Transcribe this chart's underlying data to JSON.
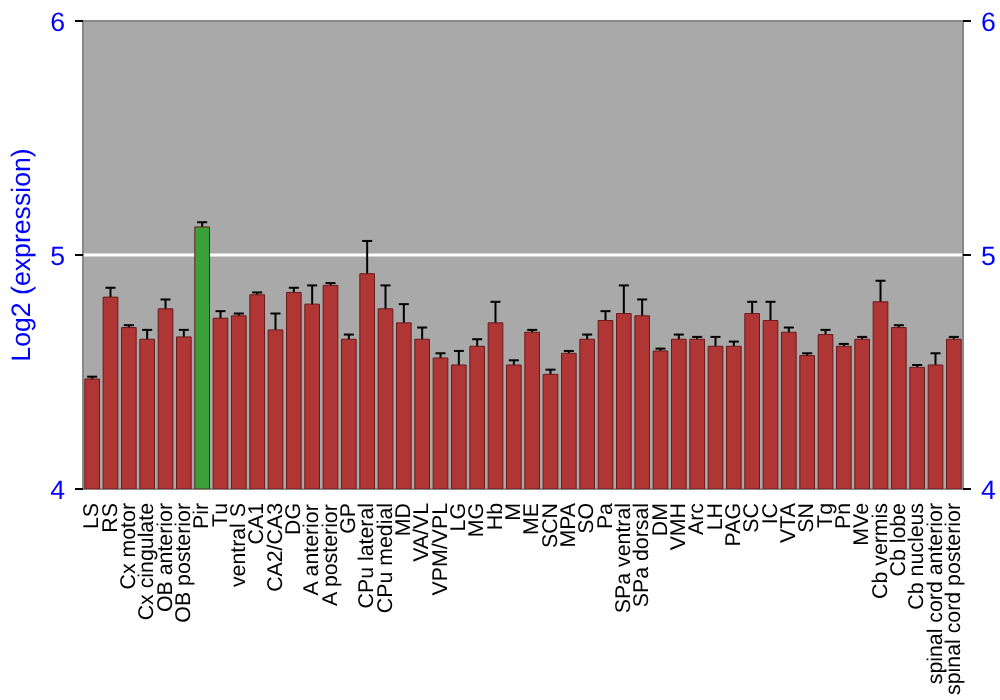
{
  "chart_data": {
    "type": "bar",
    "ylabel": "Log2 (expression)",
    "categories": [
      "LS",
      "RS",
      "Cx motor",
      "Cx cingulate",
      "OB anterior",
      "OB posterior",
      "Pir",
      "Tu",
      "ventral S",
      "CA1",
      "CA2/CA3",
      "DG",
      "A anterior",
      "A posterior",
      "GP",
      "CPu lateral",
      "CPu medial",
      "MD",
      "VA/VL",
      "VPM/VPL",
      "LG",
      "MG",
      "Hb",
      "M",
      "ME",
      "SCN",
      "MPA",
      "SO",
      "Pa",
      "SPa ventral",
      "SPa dorsal",
      "DM",
      "VMH",
      "Arc",
      "LH",
      "PAG",
      "SC",
      "IC",
      "VTA",
      "SN",
      "Tg",
      "Pn",
      "MVe",
      "Cb vermis",
      "Cb lobe",
      "Cb nucleus",
      "spinal cord anterior",
      "spinal cord posterior"
    ],
    "values": [
      4.47,
      4.82,
      4.69,
      4.64,
      4.77,
      4.65,
      5.12,
      4.73,
      4.74,
      4.83,
      4.68,
      4.84,
      4.79,
      4.87,
      4.64,
      4.92,
      4.77,
      4.71,
      4.64,
      4.56,
      4.53,
      4.61,
      4.71,
      4.53,
      4.67,
      4.49,
      4.58,
      4.64,
      4.72,
      4.75,
      4.74,
      4.59,
      4.64,
      4.64,
      4.61,
      4.61,
      4.75,
      4.72,
      4.67,
      4.57,
      4.66,
      4.61,
      4.64,
      4.8,
      4.69,
      4.52,
      4.53,
      4.64
    ],
    "errors": [
      0.01,
      0.04,
      0.01,
      0.04,
      0.04,
      0.03,
      0.02,
      0.03,
      0.01,
      0.01,
      0.07,
      0.02,
      0.08,
      0.01,
      0.02,
      0.14,
      0.1,
      0.08,
      0.05,
      0.02,
      0.06,
      0.03,
      0.09,
      0.02,
      0.01,
      0.02,
      0.01,
      0.02,
      0.04,
      0.12,
      0.07,
      0.01,
      0.02,
      0.01,
      0.04,
      0.02,
      0.05,
      0.08,
      0.02,
      0.01,
      0.02,
      0.01,
      0.01,
      0.09,
      0.01,
      0.01,
      0.05,
      0.01
    ],
    "colors": [
      "#b03535",
      "#b03535",
      "#b03535",
      "#b03535",
      "#b03535",
      "#b03535",
      "#3aa03a",
      "#b03535",
      "#b03535",
      "#b03535",
      "#b03535",
      "#b03535",
      "#b03535",
      "#b03535",
      "#b03535",
      "#b03535",
      "#b03535",
      "#b03535",
      "#b03535",
      "#b03535",
      "#b03535",
      "#b03535",
      "#b03535",
      "#b03535",
      "#b03535",
      "#b03535",
      "#b03535",
      "#b03535",
      "#b03535",
      "#b03535",
      "#b03535",
      "#b03535",
      "#b03535",
      "#b03535",
      "#b03535",
      "#b03535",
      "#b03535",
      "#b03535",
      "#b03535",
      "#b03535",
      "#b03535",
      "#b03535",
      "#b03535",
      "#b03535",
      "#b03535",
      "#b03535",
      "#b03535",
      "#b03535"
    ],
    "ylim": [
      4,
      6
    ],
    "yticks": [
      4,
      5,
      6
    ],
    "y2lim": [
      4,
      6
    ],
    "y2ticks": [
      4,
      5,
      6
    ],
    "grid": "y"
  }
}
